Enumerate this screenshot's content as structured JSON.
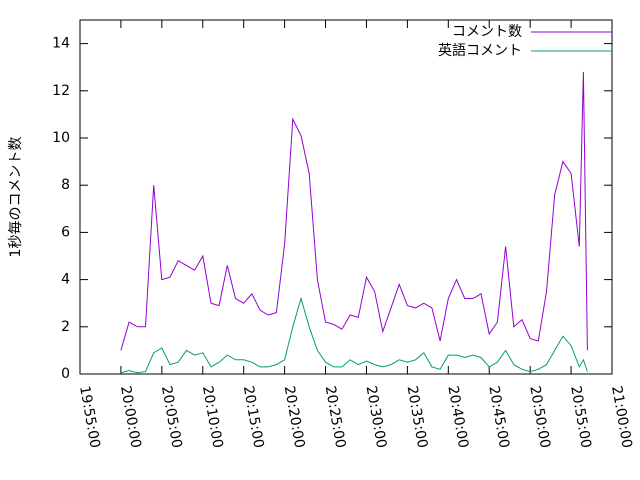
{
  "chart_data": {
    "type": "line",
    "ylabel": "1秒毎のコメント数",
    "x": [
      "20:00:00",
      "20:01:00",
      "20:02:00",
      "20:03:00",
      "20:04:00",
      "20:05:00",
      "20:06:00",
      "20:07:00",
      "20:08:00",
      "20:09:00",
      "20:10:00",
      "20:11:00",
      "20:12:00",
      "20:13:00",
      "20:14:00",
      "20:15:00",
      "20:16:00",
      "20:17:00",
      "20:18:00",
      "20:19:00",
      "20:20:00",
      "20:21:00",
      "20:22:00",
      "20:23:00",
      "20:24:00",
      "20:25:00",
      "20:26:00",
      "20:27:00",
      "20:28:00",
      "20:29:00",
      "20:30:00",
      "20:31:00",
      "20:32:00",
      "20:33:00",
      "20:34:00",
      "20:35:00",
      "20:36:00",
      "20:37:00",
      "20:38:00",
      "20:39:00",
      "20:40:00",
      "20:41:00",
      "20:42:00",
      "20:43:00",
      "20:44:00",
      "20:45:00",
      "20:46:00",
      "20:47:00",
      "20:48:00",
      "20:49:00",
      "20:50:00",
      "20:51:00",
      "20:52:00",
      "20:53:00",
      "20:54:00",
      "20:55:00",
      "20:56:00",
      "20:56:30",
      "20:57:00"
    ],
    "series": [
      {
        "name": "コメント数",
        "color": "#9400d3",
        "values": [
          1.0,
          2.2,
          2.0,
          2.0,
          8.0,
          4.0,
          4.1,
          4.8,
          4.6,
          4.4,
          5.0,
          3.0,
          2.9,
          4.6,
          3.2,
          3.0,
          3.4,
          2.7,
          2.5,
          2.6,
          5.5,
          10.8,
          10.1,
          8.5,
          4.0,
          2.2,
          2.1,
          1.9,
          2.5,
          2.4,
          4.1,
          3.5,
          1.8,
          2.8,
          3.8,
          2.9,
          2.8,
          3.0,
          2.8,
          1.4,
          3.2,
          4.0,
          3.2,
          3.2,
          3.4,
          1.7,
          2.2,
          5.4,
          2.0,
          2.3,
          1.5,
          1.4,
          3.5,
          7.6,
          9.0,
          8.5,
          5.4,
          12.8,
          1.0
        ]
      },
      {
        "name": "英語コメント",
        "color": "#009e73",
        "values": [
          0.05,
          0.15,
          0.05,
          0.1,
          0.9,
          1.1,
          0.4,
          0.5,
          1.0,
          0.8,
          0.9,
          0.3,
          0.5,
          0.8,
          0.6,
          0.6,
          0.5,
          0.3,
          0.3,
          0.4,
          0.6,
          2.0,
          3.2,
          2.0,
          1.0,
          0.5,
          0.3,
          0.3,
          0.6,
          0.4,
          0.55,
          0.4,
          0.3,
          0.4,
          0.6,
          0.5,
          0.6,
          0.9,
          0.3,
          0.2,
          0.8,
          0.8,
          0.7,
          0.8,
          0.7,
          0.3,
          0.5,
          1.0,
          0.4,
          0.2,
          0.1,
          0.2,
          0.4,
          1.0,
          1.6,
          1.2,
          0.3,
          0.6,
          0.1
        ]
      }
    ],
    "xlim": [
      "19:55:00",
      "21:00:00"
    ],
    "xticks": [
      "19:55:00",
      "20:00:00",
      "20:05:00",
      "20:10:00",
      "20:15:00",
      "20:20:00",
      "20:25:00",
      "20:30:00",
      "20:35:00",
      "20:40:00",
      "20:45:00",
      "20:50:00",
      "20:55:00",
      "21:00:00"
    ],
    "ylim": [
      0,
      15
    ],
    "yticks": [
      0,
      2,
      4,
      6,
      8,
      10,
      12,
      14
    ],
    "legend": "top-right"
  }
}
